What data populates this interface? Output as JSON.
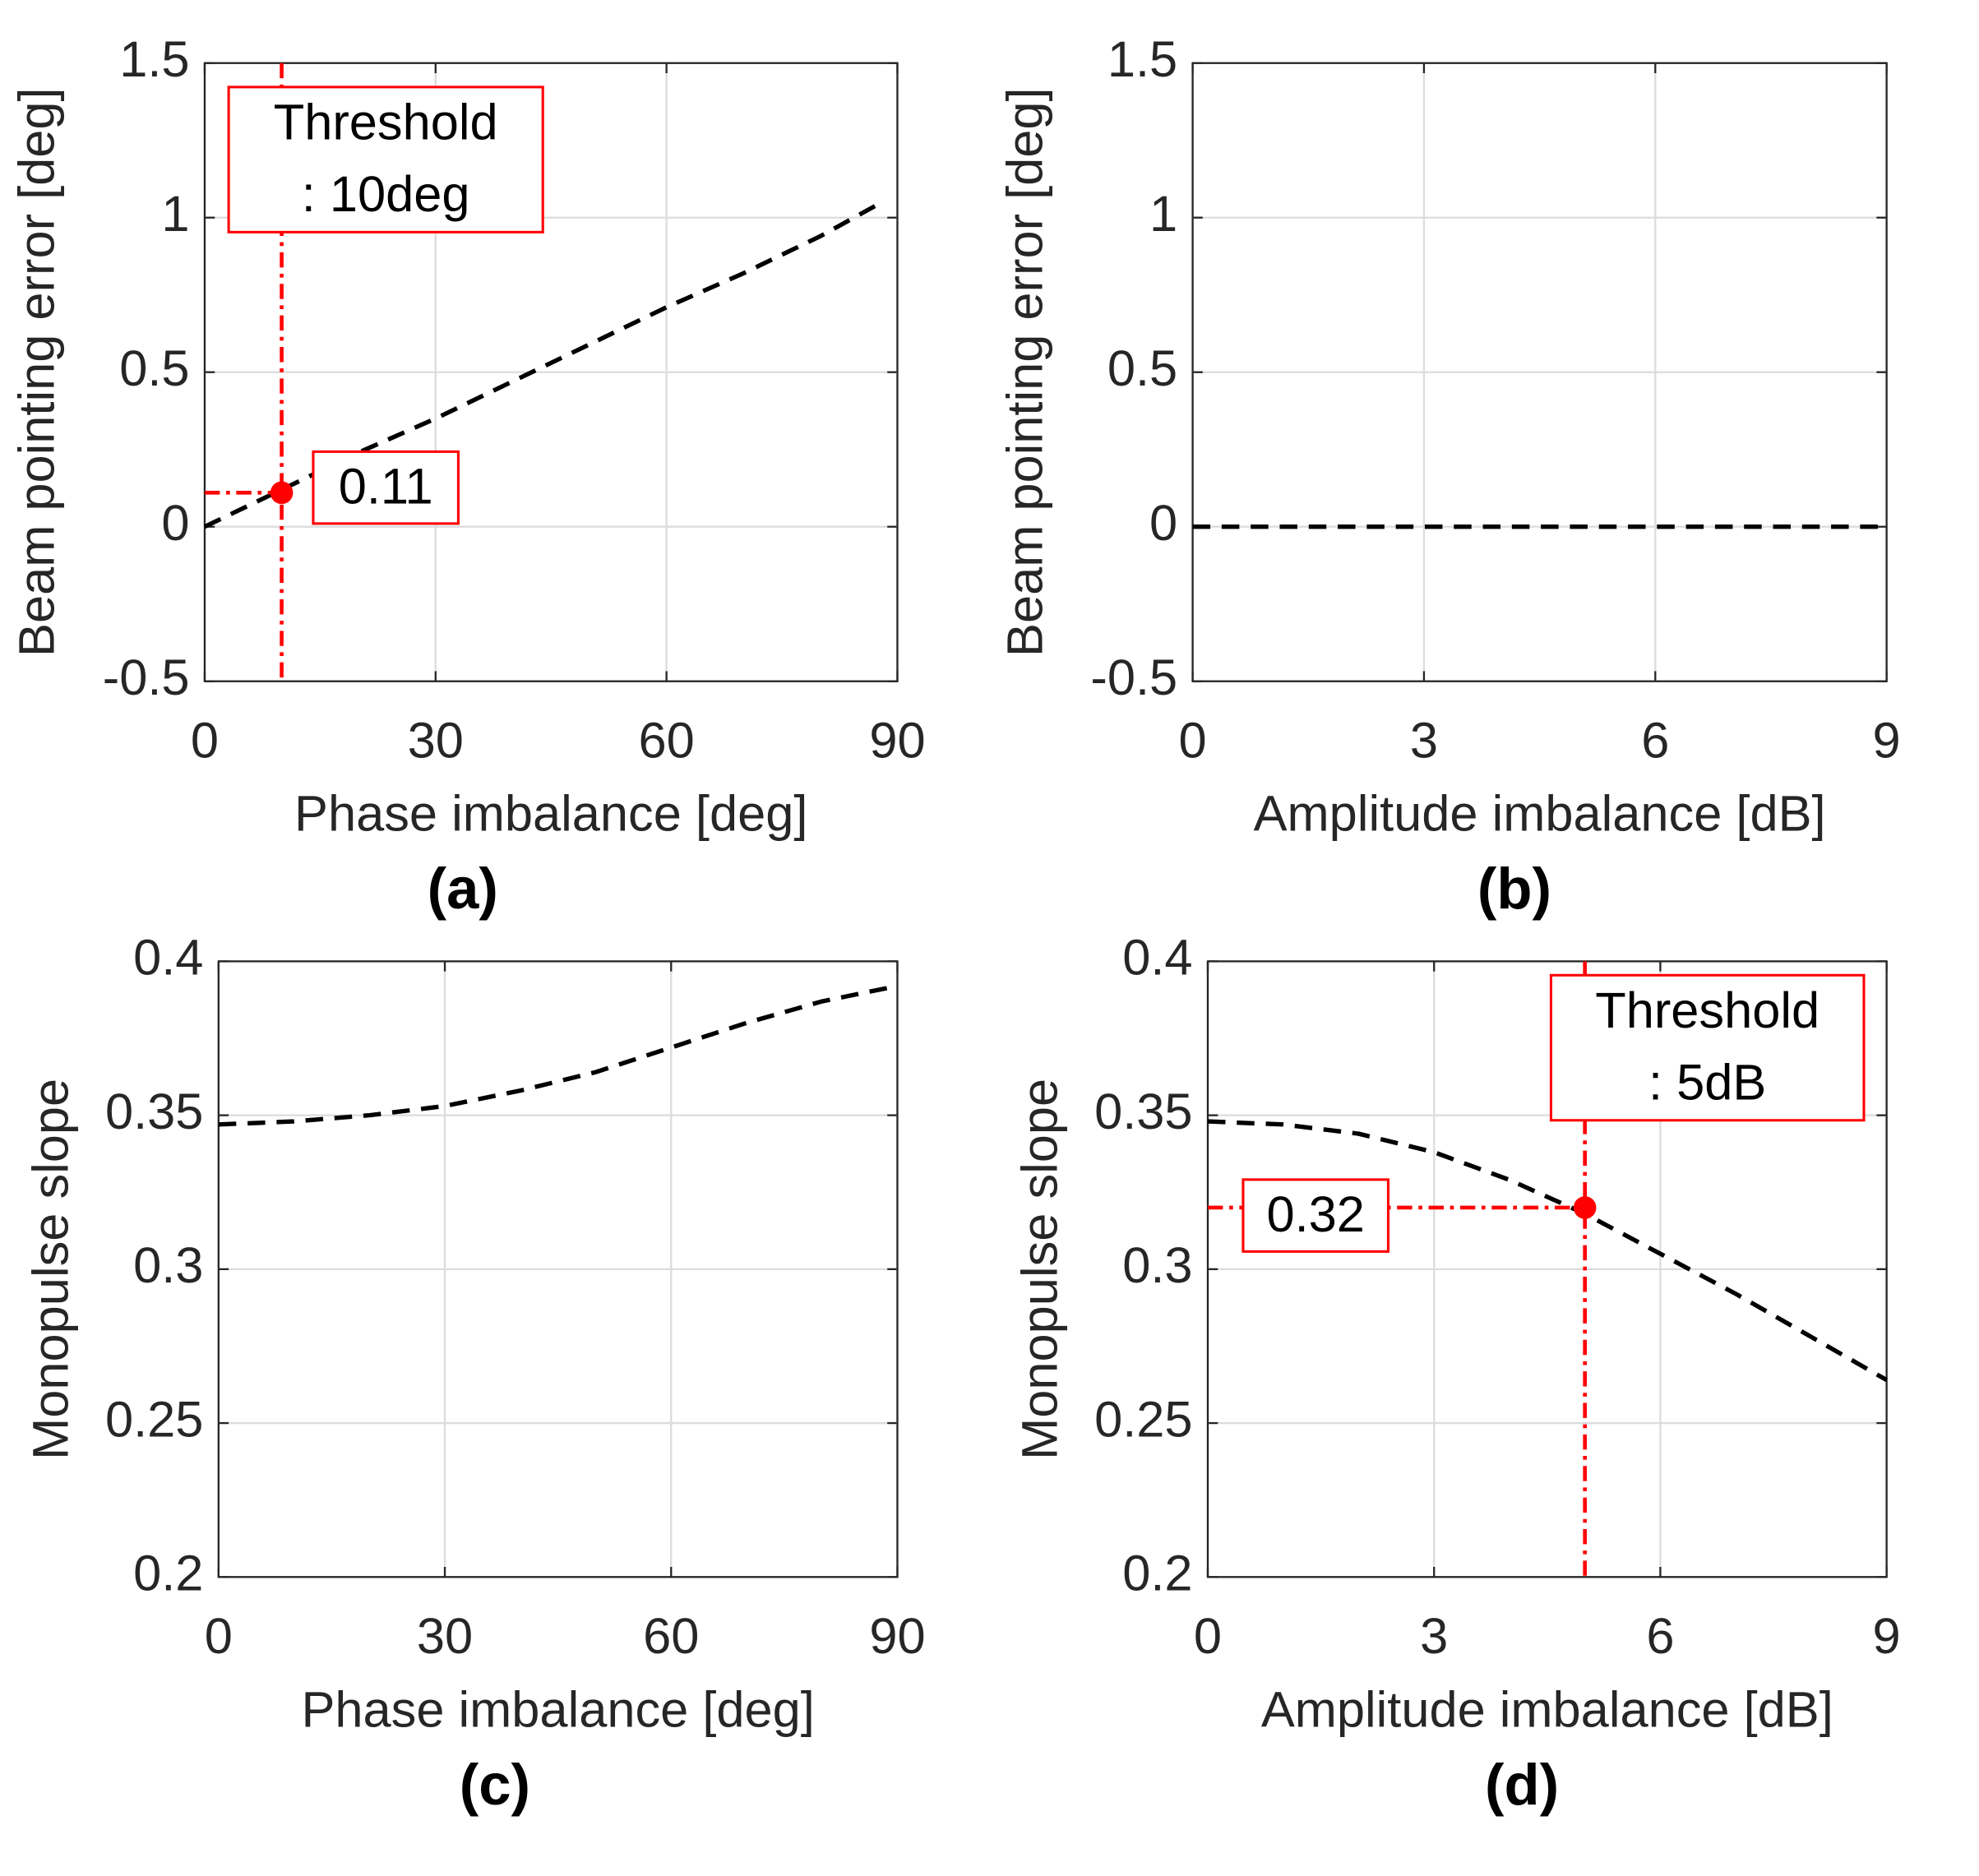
{
  "chart_data": [
    {
      "type": "line",
      "caption": "(a)",
      "xlabel": "Phase imbalance [deg]",
      "ylabel": "Beam pointing error [deg]",
      "xlim": [
        0,
        90
      ],
      "ylim": [
        -0.5,
        1.5
      ],
      "xticks": [
        0,
        30,
        60,
        90
      ],
      "yticks": [
        -0.5,
        0,
        0.5,
        1,
        1.5
      ],
      "grid": true,
      "x": [
        0,
        10,
        20,
        30,
        40,
        50,
        60,
        70,
        80,
        88
      ],
      "series": [
        {
          "color": "#000000",
          "values": [
            0,
            0.12,
            0.24,
            0.35,
            0.47,
            0.59,
            0.71,
            0.82,
            0.94,
            1.05
          ]
        }
      ],
      "threshold": {
        "x": 10,
        "label": [
          "Threshold",
          ": 10deg"
        ],
        "color": "#ff0000"
      },
      "marker": {
        "x": 10,
        "y": 0.11,
        "label": "0.11"
      }
    },
    {
      "type": "line",
      "caption": "(b)",
      "xlabel": "Amplitude imbalance [dB]",
      "ylabel": "Beam pointing error [deg]",
      "xlim": [
        0,
        9
      ],
      "ylim": [
        -0.5,
        1.5
      ],
      "xticks": [
        0,
        3,
        6,
        9
      ],
      "yticks": [
        -0.5,
        0,
        0.5,
        1,
        1.5
      ],
      "grid": true,
      "x": [
        0,
        9
      ],
      "series": [
        {
          "color": "#000000",
          "values": [
            0,
            0
          ]
        }
      ]
    },
    {
      "type": "line",
      "caption": "(c)",
      "xlabel": "Phase imbalance [deg]",
      "ylabel": "Monopulse slope",
      "xlim": [
        0,
        90
      ],
      "ylim": [
        0.2,
        0.4
      ],
      "xticks": [
        0,
        30,
        60,
        90
      ],
      "yticks": [
        0.2,
        0.25,
        0.3,
        0.35,
        0.4
      ],
      "grid": true,
      "x": [
        0,
        10,
        20,
        30,
        40,
        50,
        60,
        70,
        80,
        90
      ],
      "series": [
        {
          "color": "#000000",
          "values": [
            0.347,
            0.348,
            0.35,
            0.353,
            0.358,
            0.364,
            0.372,
            0.38,
            0.387,
            0.392
          ]
        }
      ]
    },
    {
      "type": "line",
      "caption": "(d)",
      "xlabel": "Amplitude imbalance [dB]",
      "ylabel": "Monopulse slope",
      "xlim": [
        0,
        9
      ],
      "ylim": [
        0.2,
        0.4
      ],
      "xticks": [
        0,
        3,
        6,
        9
      ],
      "yticks": [
        0.2,
        0.25,
        0.3,
        0.35,
        0.4
      ],
      "grid": true,
      "x": [
        0,
        1,
        2,
        3,
        4,
        5,
        6,
        7,
        8,
        9
      ],
      "series": [
        {
          "color": "#000000",
          "values": [
            0.348,
            0.347,
            0.344,
            0.338,
            0.329,
            0.318,
            0.305,
            0.292,
            0.278,
            0.264
          ]
        }
      ],
      "threshold": {
        "x": 5,
        "label": [
          "Threshold",
          ": 5dB"
        ],
        "color": "#ff0000"
      },
      "marker": {
        "x": 5,
        "y": 0.32,
        "label": "0.32"
      }
    }
  ]
}
